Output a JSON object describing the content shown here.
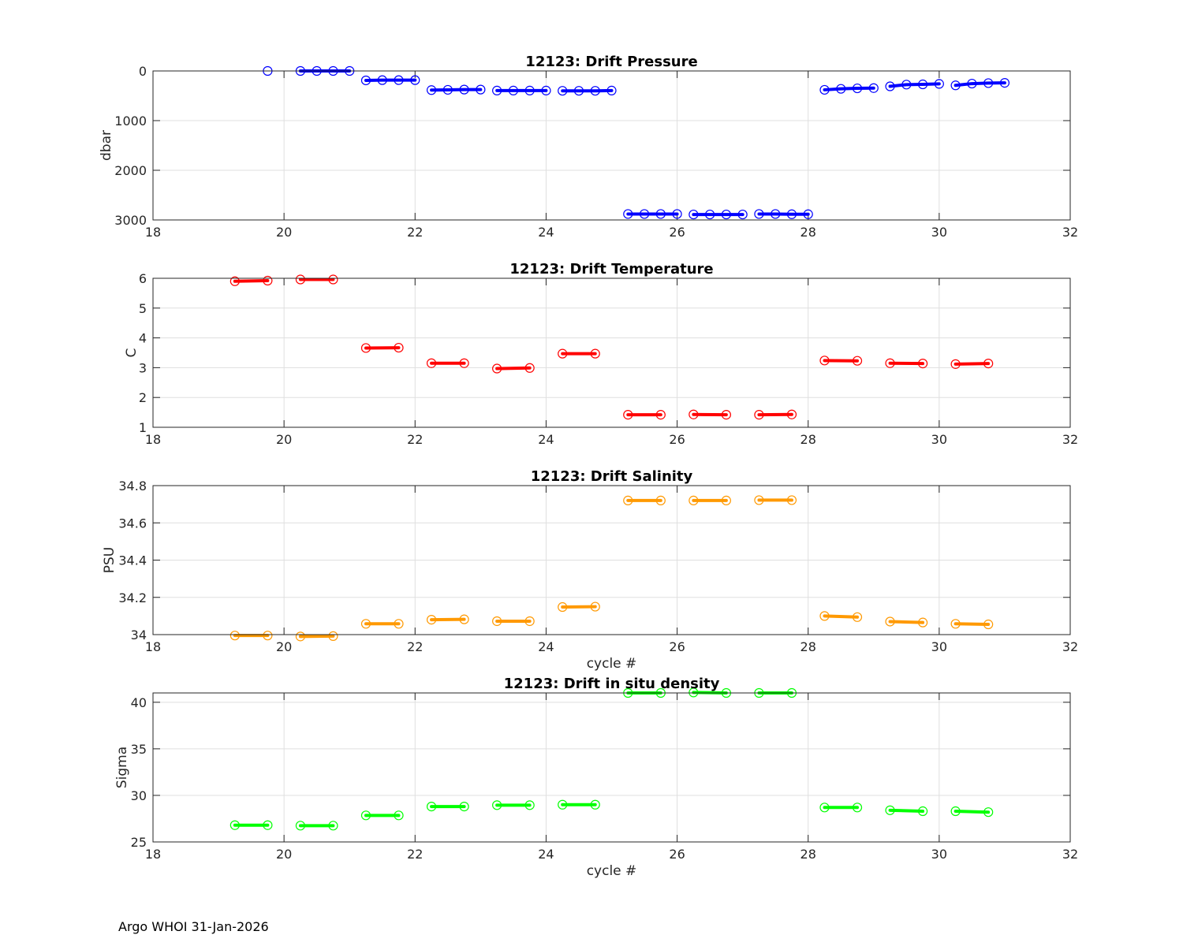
{
  "footer": "Argo WHOI 31-Jan-2026",
  "chart_data": [
    {
      "type": "line",
      "title": "12123: Drift Pressure",
      "xlabel": "",
      "ylabel": "dbar",
      "xlim": [
        18,
        32
      ],
      "ylim": [
        0,
        3000
      ],
      "y_reversed": true,
      "xticks": [
        18,
        20,
        22,
        24,
        26,
        28,
        30,
        32
      ],
      "yticks": [
        0,
        1000,
        2000,
        3000
      ],
      "grid": true,
      "color": "#0000ff",
      "series": [
        {
          "cycle": 19,
          "x": [
            19.75
          ],
          "y": [
            0
          ]
        },
        {
          "cycle": 20,
          "x": [
            20.25,
            20.5,
            20.75,
            21.0
          ],
          "y": [
            0,
            0,
            0,
            0
          ]
        },
        {
          "cycle": 21,
          "x": [
            21.25,
            21.5,
            21.75,
            22.0
          ],
          "y": [
            190,
            185,
            185,
            185
          ]
        },
        {
          "cycle": 22,
          "x": [
            22.25,
            22.5,
            22.75,
            23.0
          ],
          "y": [
            385,
            380,
            375,
            375
          ]
        },
        {
          "cycle": 23,
          "x": [
            23.25,
            23.5,
            23.75,
            24.0
          ],
          "y": [
            395,
            395,
            395,
            395
          ]
        },
        {
          "cycle": 24,
          "x": [
            24.25,
            24.5,
            24.75,
            25.0
          ],
          "y": [
            400,
            400,
            400,
            395
          ]
        },
        {
          "cycle": 25,
          "x": [
            25.25,
            25.5,
            25.75,
            26.0
          ],
          "y": [
            2880,
            2880,
            2880,
            2880
          ]
        },
        {
          "cycle": 26,
          "x": [
            26.25,
            26.5,
            26.75,
            27.0
          ],
          "y": [
            2890,
            2890,
            2890,
            2890
          ]
        },
        {
          "cycle": 27,
          "x": [
            27.25,
            27.5,
            27.75,
            28.0
          ],
          "y": [
            2880,
            2880,
            2885,
            2885
          ]
        },
        {
          "cycle": 28,
          "x": [
            28.25,
            28.5,
            28.75,
            29.0
          ],
          "y": [
            380,
            360,
            350,
            345
          ]
        },
        {
          "cycle": 29,
          "x": [
            29.25,
            29.5,
            29.75,
            30.0
          ],
          "y": [
            310,
            275,
            270,
            260
          ]
        },
        {
          "cycle": 30,
          "x": [
            30.25,
            30.5,
            30.75,
            31.0
          ],
          "y": [
            290,
            255,
            245,
            240
          ]
        }
      ]
    },
    {
      "type": "line",
      "title": "12123: Drift Temperature",
      "xlabel": "",
      "ylabel": "C",
      "xlim": [
        18,
        32
      ],
      "ylim": [
        1,
        6
      ],
      "xticks": [
        18,
        20,
        22,
        24,
        26,
        28,
        30,
        32
      ],
      "yticks": [
        1,
        2,
        3,
        4,
        5,
        6
      ],
      "grid": true,
      "color": "#ff0000",
      "series": [
        {
          "cycle": 19,
          "x": [
            19.25,
            19.75
          ],
          "y": [
            5.9,
            5.92
          ]
        },
        {
          "cycle": 20,
          "x": [
            20.25,
            20.75
          ],
          "y": [
            5.96,
            5.96
          ]
        },
        {
          "cycle": 21,
          "x": [
            21.25,
            21.75
          ],
          "y": [
            3.66,
            3.67
          ]
        },
        {
          "cycle": 22,
          "x": [
            22.25,
            22.75
          ],
          "y": [
            3.15,
            3.15
          ]
        },
        {
          "cycle": 23,
          "x": [
            23.25,
            23.75
          ],
          "y": [
            2.97,
            2.99
          ]
        },
        {
          "cycle": 24,
          "x": [
            24.25,
            24.75
          ],
          "y": [
            3.47,
            3.47
          ]
        },
        {
          "cycle": 25,
          "x": [
            25.25,
            25.75
          ],
          "y": [
            1.42,
            1.42
          ]
        },
        {
          "cycle": 26,
          "x": [
            26.25,
            26.75
          ],
          "y": [
            1.43,
            1.42
          ]
        },
        {
          "cycle": 27,
          "x": [
            27.25,
            27.75
          ],
          "y": [
            1.42,
            1.43
          ]
        },
        {
          "cycle": 28,
          "x": [
            28.25,
            28.75
          ],
          "y": [
            3.24,
            3.23
          ]
        },
        {
          "cycle": 29,
          "x": [
            29.25,
            29.75
          ],
          "y": [
            3.15,
            3.14
          ]
        },
        {
          "cycle": 30,
          "x": [
            30.25,
            30.75
          ],
          "y": [
            3.12,
            3.14
          ]
        }
      ]
    },
    {
      "type": "line",
      "title": "12123: Drift Salinity",
      "xlabel": "cycle #",
      "ylabel": "PSU",
      "xlim": [
        18,
        32
      ],
      "ylim": [
        34,
        34.8
      ],
      "xticks": [
        18,
        20,
        22,
        24,
        26,
        28,
        30,
        32
      ],
      "yticks": [
        34,
        34.2,
        34.4,
        34.6,
        34.8
      ],
      "grid": true,
      "color": "#ff9900",
      "series": [
        {
          "cycle": 19,
          "x": [
            19.25,
            19.75
          ],
          "y": [
            33.995,
            33.995
          ]
        },
        {
          "cycle": 20,
          "x": [
            20.25,
            20.75
          ],
          "y": [
            33.99,
            33.992
          ]
        },
        {
          "cycle": 21,
          "x": [
            21.25,
            21.75
          ],
          "y": [
            34.058,
            34.058
          ]
        },
        {
          "cycle": 22,
          "x": [
            22.25,
            22.75
          ],
          "y": [
            34.08,
            34.082
          ]
        },
        {
          "cycle": 23,
          "x": [
            23.25,
            23.75
          ],
          "y": [
            34.072,
            34.072
          ]
        },
        {
          "cycle": 24,
          "x": [
            24.25,
            24.75
          ],
          "y": [
            34.148,
            34.15
          ]
        },
        {
          "cycle": 25,
          "x": [
            25.25,
            25.75
          ],
          "y": [
            34.72,
            34.72
          ]
        },
        {
          "cycle": 26,
          "x": [
            26.25,
            26.75
          ],
          "y": [
            34.72,
            34.72
          ]
        },
        {
          "cycle": 27,
          "x": [
            27.25,
            27.75
          ],
          "y": [
            34.722,
            34.722
          ]
        },
        {
          "cycle": 28,
          "x": [
            28.25,
            28.75
          ],
          "y": [
            34.1,
            34.094
          ]
        },
        {
          "cycle": 29,
          "x": [
            29.25,
            29.75
          ],
          "y": [
            34.07,
            34.065
          ]
        },
        {
          "cycle": 30,
          "x": [
            30.25,
            30.75
          ],
          "y": [
            34.058,
            34.055
          ]
        }
      ]
    },
    {
      "type": "line",
      "title": "12123: Drift in situ density",
      "xlabel": "cycle #",
      "ylabel": "Sigma",
      "xlim": [
        18,
        32
      ],
      "ylim": [
        25,
        41
      ],
      "xticks": [
        18,
        20,
        22,
        24,
        26,
        28,
        30,
        32
      ],
      "yticks": [
        25,
        30,
        35,
        40
      ],
      "grid": true,
      "color": "#00ff00",
      "series": [
        {
          "cycle": 19,
          "x": [
            19.25,
            19.75
          ],
          "y": [
            26.8,
            26.8
          ]
        },
        {
          "cycle": 20,
          "x": [
            20.25,
            20.75
          ],
          "y": [
            26.75,
            26.75
          ]
        },
        {
          "cycle": 21,
          "x": [
            21.25,
            21.75
          ],
          "y": [
            27.85,
            27.85
          ]
        },
        {
          "cycle": 22,
          "x": [
            22.25,
            22.75
          ],
          "y": [
            28.8,
            28.8
          ]
        },
        {
          "cycle": 23,
          "x": [
            23.25,
            23.75
          ],
          "y": [
            28.95,
            28.95
          ]
        },
        {
          "cycle": 24,
          "x": [
            24.25,
            24.75
          ],
          "y": [
            29.0,
            29.0
          ]
        },
        {
          "cycle": 25,
          "x": [
            25.25,
            25.75
          ],
          "y": [
            41.0,
            41.0
          ]
        },
        {
          "cycle": 26,
          "x": [
            26.25,
            26.75
          ],
          "y": [
            41.05,
            41.0
          ]
        },
        {
          "cycle": 27,
          "x": [
            27.25,
            27.75
          ],
          "y": [
            41.0,
            41.0
          ]
        },
        {
          "cycle": 28,
          "x": [
            28.25,
            28.75
          ],
          "y": [
            28.7,
            28.7
          ]
        },
        {
          "cycle": 29,
          "x": [
            29.25,
            29.75
          ],
          "y": [
            28.4,
            28.3
          ]
        },
        {
          "cycle": 30,
          "x": [
            30.25,
            30.75
          ],
          "y": [
            28.3,
            28.2
          ]
        }
      ]
    }
  ]
}
